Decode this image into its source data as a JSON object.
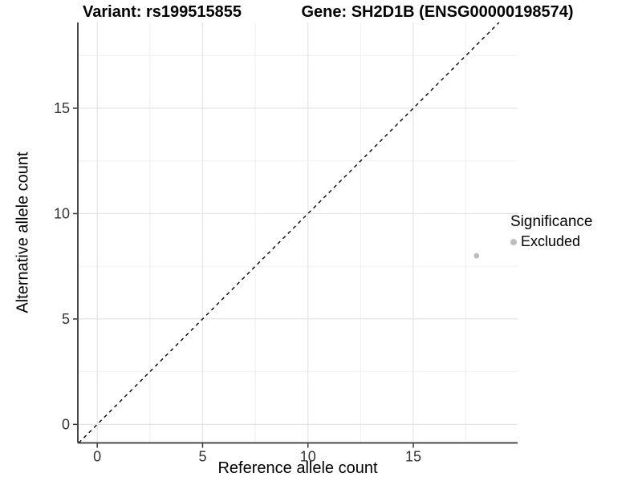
{
  "chart_data": {
    "type": "scatter",
    "title_left": "Variant: rs199515855",
    "title_right": "Gene: SH2D1B (ENSG00000198574)",
    "xlabel": "Reference allele count",
    "ylabel": "Alternative allele count",
    "xlim": [
      -0.92,
      19.95
    ],
    "ylim": [
      -0.88,
      19.07
    ],
    "x_ticks": [
      0,
      5,
      10,
      15
    ],
    "y_ticks": [
      0,
      5,
      10,
      15
    ],
    "x_minor_gridlines": [
      2.5,
      7.5,
      12.5,
      17.5
    ],
    "y_minor_gridlines": [
      2.5,
      7.5,
      12.5,
      17.5
    ],
    "grid": true,
    "identity_line": {
      "style": "dashed",
      "equation": "y = x",
      "from": -0.88,
      "to": 19.07
    },
    "points": [
      {
        "x": 18,
        "y": 8,
        "series": "Excluded"
      }
    ],
    "legend": {
      "title": "Significance",
      "position": "right",
      "items": [
        {
          "label": "Excluded",
          "color": "#bdbdbd"
        }
      ]
    },
    "colors": {
      "point": "#bdbdbd",
      "axis_line": "#333333",
      "tick_label": "#333333",
      "grid_major": "#e4e4e4",
      "grid_minor": "#efefef",
      "identity_line": "#000000",
      "text": "#000000"
    }
  }
}
